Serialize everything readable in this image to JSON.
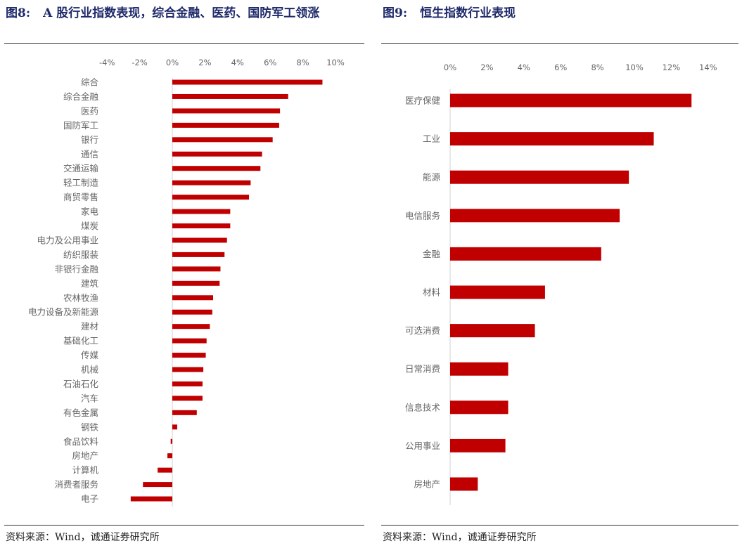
{
  "colors": {
    "bar": "#c00000",
    "title": "#1f2a6b",
    "axis": "#d9d9d9",
    "text": "#666666"
  },
  "figures": [
    {
      "id": "fig8",
      "number": "图8:",
      "title": "A 股行业指数表现，综合金融、医药、国防军工领涨",
      "source": "资料来源：Wind，诚通证券研究所"
    },
    {
      "id": "fig9",
      "number": "图9:",
      "title": "恒生指数行业表现",
      "source": "资料来源：Wind，诚通证券研究所"
    }
  ],
  "chart_data": [
    {
      "type": "bar",
      "orientation": "horizontal",
      "title": "A 股行业指数表现，综合金融、医药、国防军工领涨",
      "xlim": [
        -4,
        10
      ],
      "xticks": [
        "-4%",
        "-2%",
        "0%",
        "2%",
        "4%",
        "6%",
        "8%",
        "10%"
      ],
      "xtick_values": [
        -4,
        -2,
        0,
        2,
        4,
        6,
        8,
        10
      ],
      "xaxis_position": "top",
      "grid": false,
      "categories": [
        "综合",
        "综合金融",
        "医药",
        "国防军工",
        "银行",
        "通信",
        "交通运输",
        "轻工制造",
        "商贸零售",
        "家电",
        "煤炭",
        "电力及公用事业",
        "纺织服装",
        "非银行金融",
        "建筑",
        "农林牧渔",
        "电力设备及新能源",
        "建材",
        "基础化工",
        "传媒",
        "机械",
        "石油石化",
        "汽车",
        "有色金属",
        "钢铁",
        "食品饮料",
        "房地产",
        "计算机",
        "消费者服务",
        "电子"
      ],
      "values": [
        9.2,
        7.1,
        6.6,
        6.55,
        6.15,
        5.5,
        5.4,
        4.8,
        4.7,
        3.55,
        3.55,
        3.35,
        3.2,
        2.95,
        2.9,
        2.5,
        2.45,
        2.3,
        2.1,
        2.05,
        1.9,
        1.85,
        1.85,
        1.5,
        0.3,
        -0.1,
        -0.3,
        -0.9,
        -1.8,
        -2.55
      ]
    },
    {
      "type": "bar",
      "orientation": "horizontal",
      "title": "恒生指数行业表现",
      "xlim": [
        0,
        14
      ],
      "xticks": [
        "0%",
        "2%",
        "4%",
        "6%",
        "8%",
        "10%",
        "12%",
        "14%"
      ],
      "xtick_values": [
        0,
        2,
        4,
        6,
        8,
        10,
        12,
        14
      ],
      "xaxis_position": "top",
      "grid": false,
      "categories": [
        "医疗保健",
        "工业",
        "能源",
        "电信服务",
        "金融",
        "材料",
        "可选消费",
        "日常消费",
        "信息技术",
        "公用事业",
        "房地产"
      ],
      "values": [
        13.1,
        11.05,
        9.7,
        9.2,
        8.2,
        5.15,
        4.6,
        3.15,
        3.15,
        3.0,
        1.5
      ]
    }
  ]
}
